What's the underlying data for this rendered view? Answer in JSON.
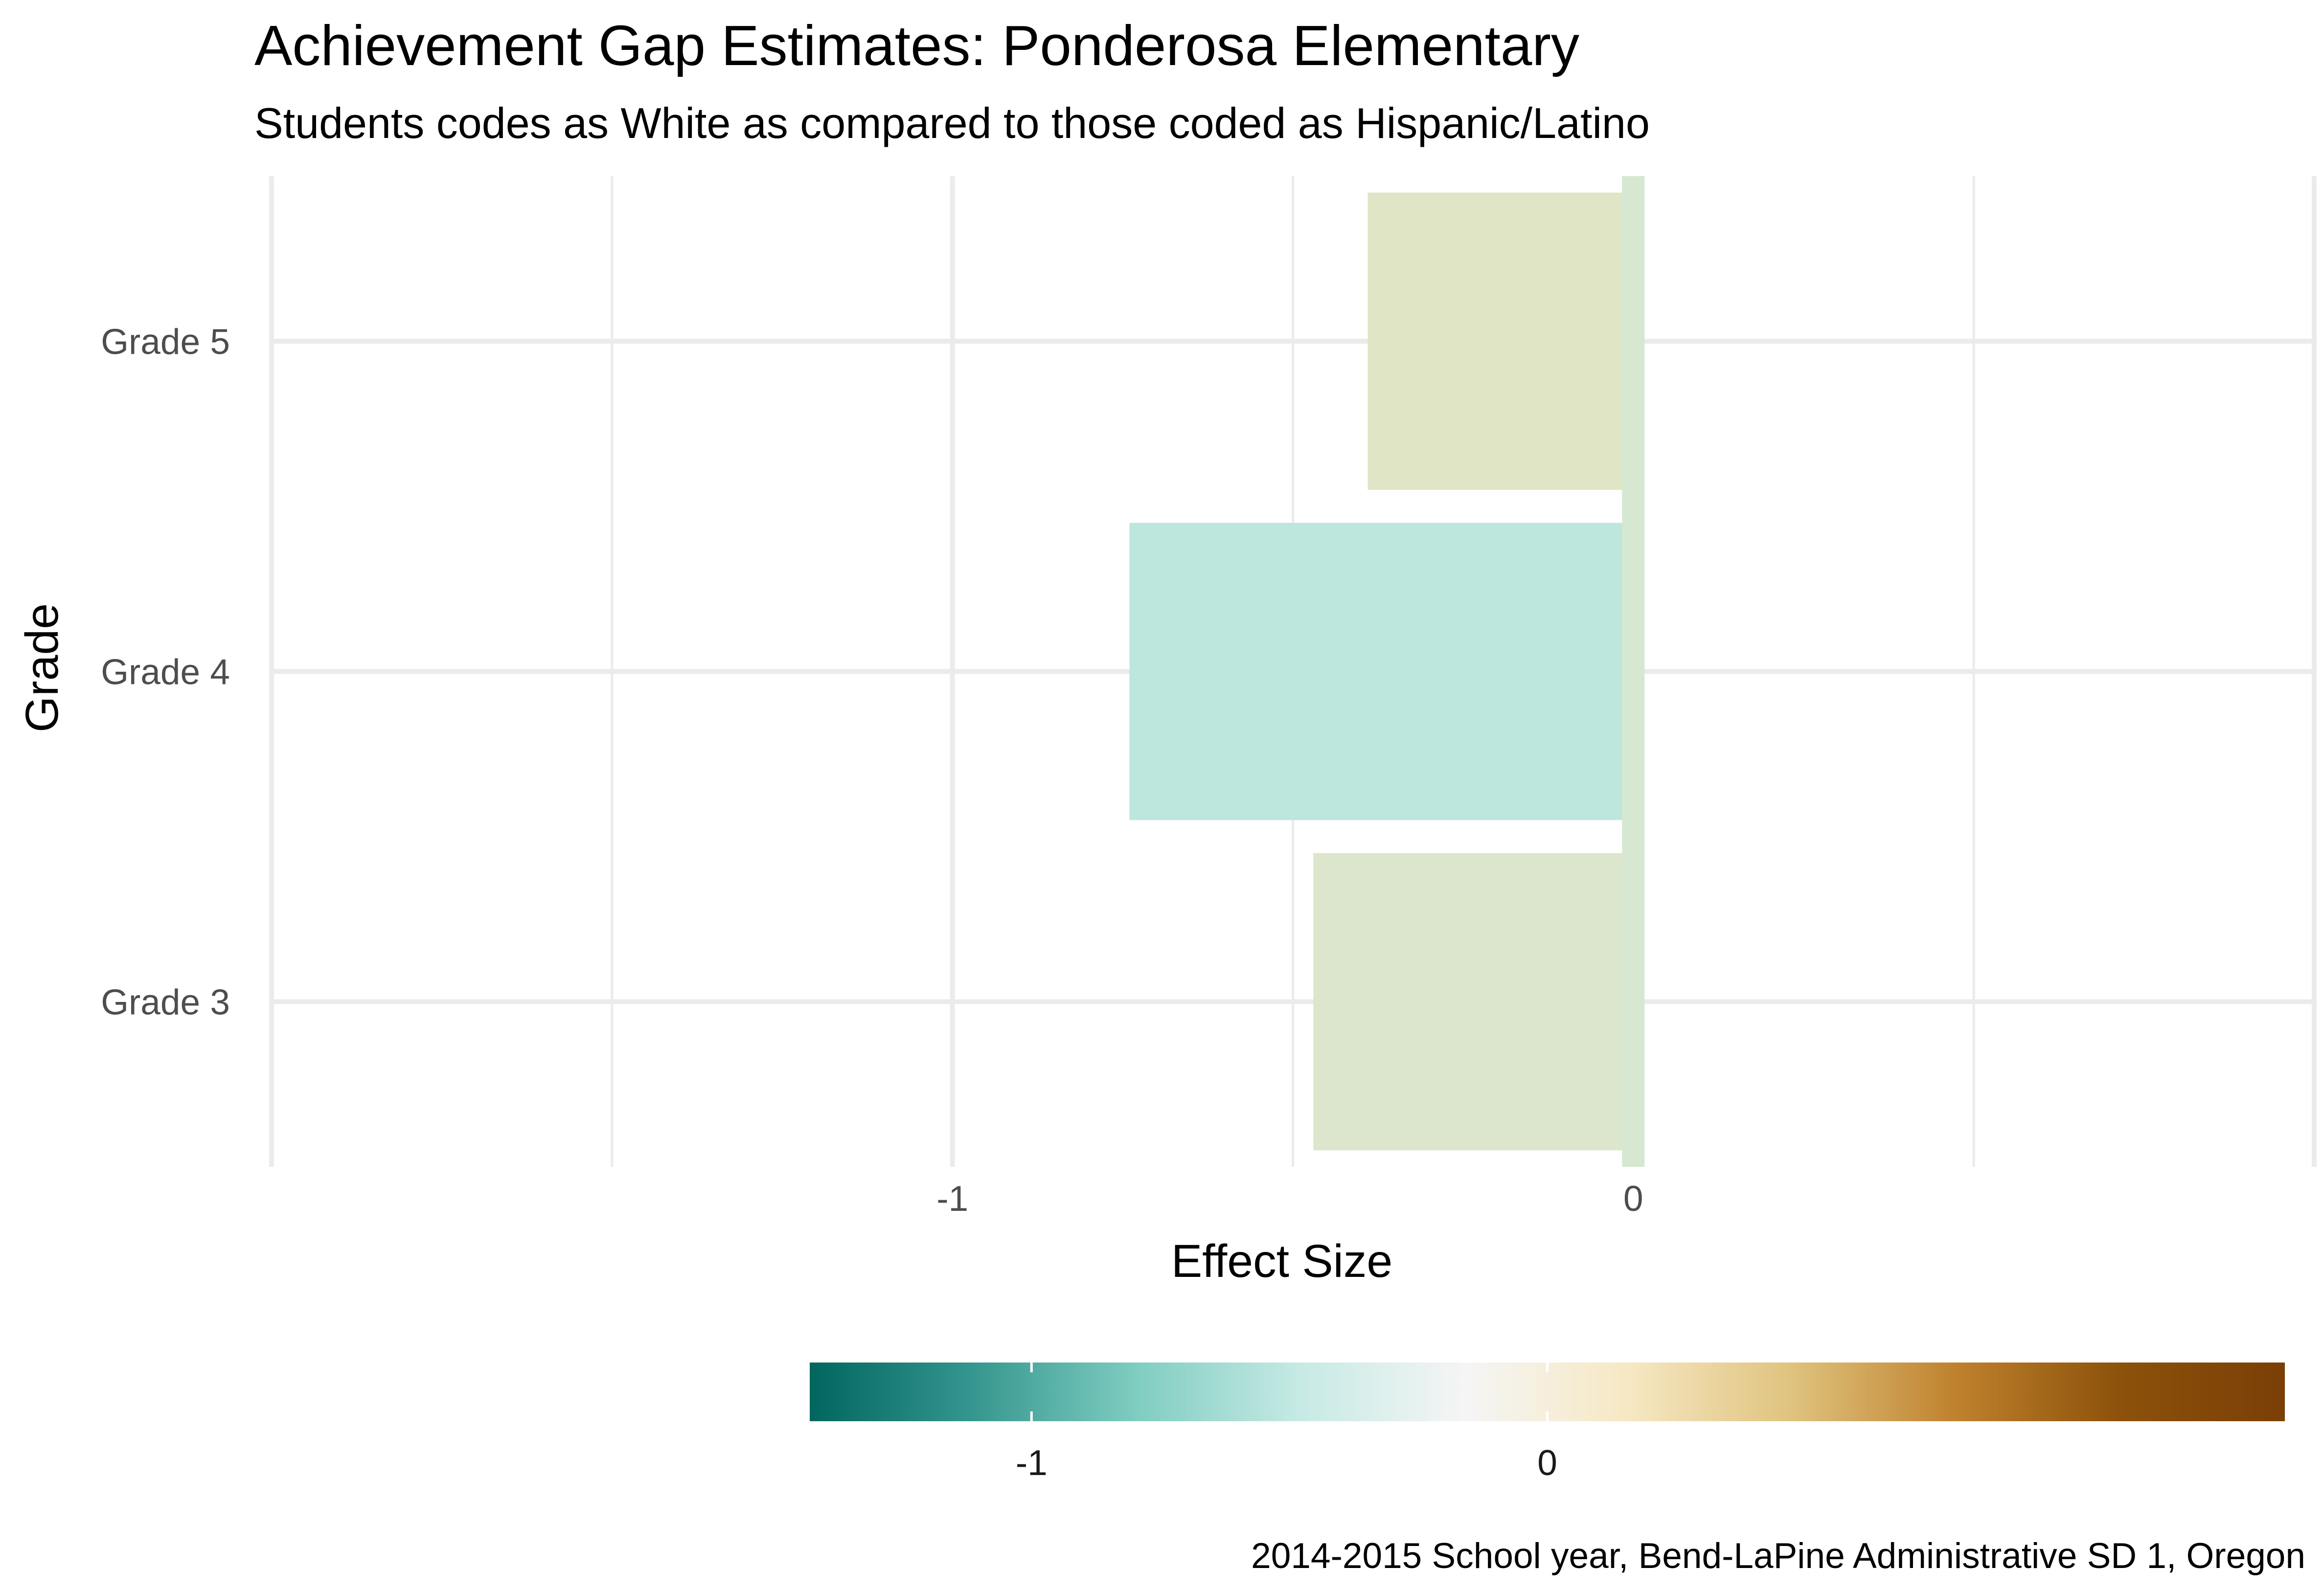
{
  "chart_data": {
    "type": "bar",
    "orientation": "horizontal",
    "title": "Achievement Gap Estimates: Ponderosa Elementary",
    "subtitle": "Students codes as White as compared to those coded as Hispanic/Latino",
    "xlabel": "Effect Size",
    "ylabel": "Grade",
    "categories": [
      "Grade 3",
      "Grade 4",
      "Grade 5"
    ],
    "values": [
      -0.47,
      -0.74,
      -0.39
    ],
    "errorbar_value": 0.0,
    "x_ticks": [
      -1,
      0
    ],
    "x_tick_labels": [
      "-1",
      "0"
    ],
    "xlim": [
      -2.0,
      1.0
    ],
    "grid": true,
    "colors": {
      "Grade 3": "#dbe6cc",
      "Grade 4": "#bde6dd",
      "Grade 5": "#e0e5c5",
      "zero_bar": "#d6e8d2"
    },
    "legend": {
      "type": "colorbar",
      "placement": "bottom",
      "range": [
        -1.43,
        1.43
      ],
      "ticks": [
        -1,
        0
      ],
      "tick_labels": [
        "-1",
        "0"
      ],
      "palette": [
        "#01665e",
        "#35978f",
        "#80cdc1",
        "#c7eae5",
        "#f5f5f5",
        "#f6e8c3",
        "#dfc27d",
        "#bf812d",
        "#8c510a",
        "#7a3f06"
      ]
    },
    "caption": "2014-2015 School year, Bend-LaPine Administrative SD 1, Oregon"
  }
}
